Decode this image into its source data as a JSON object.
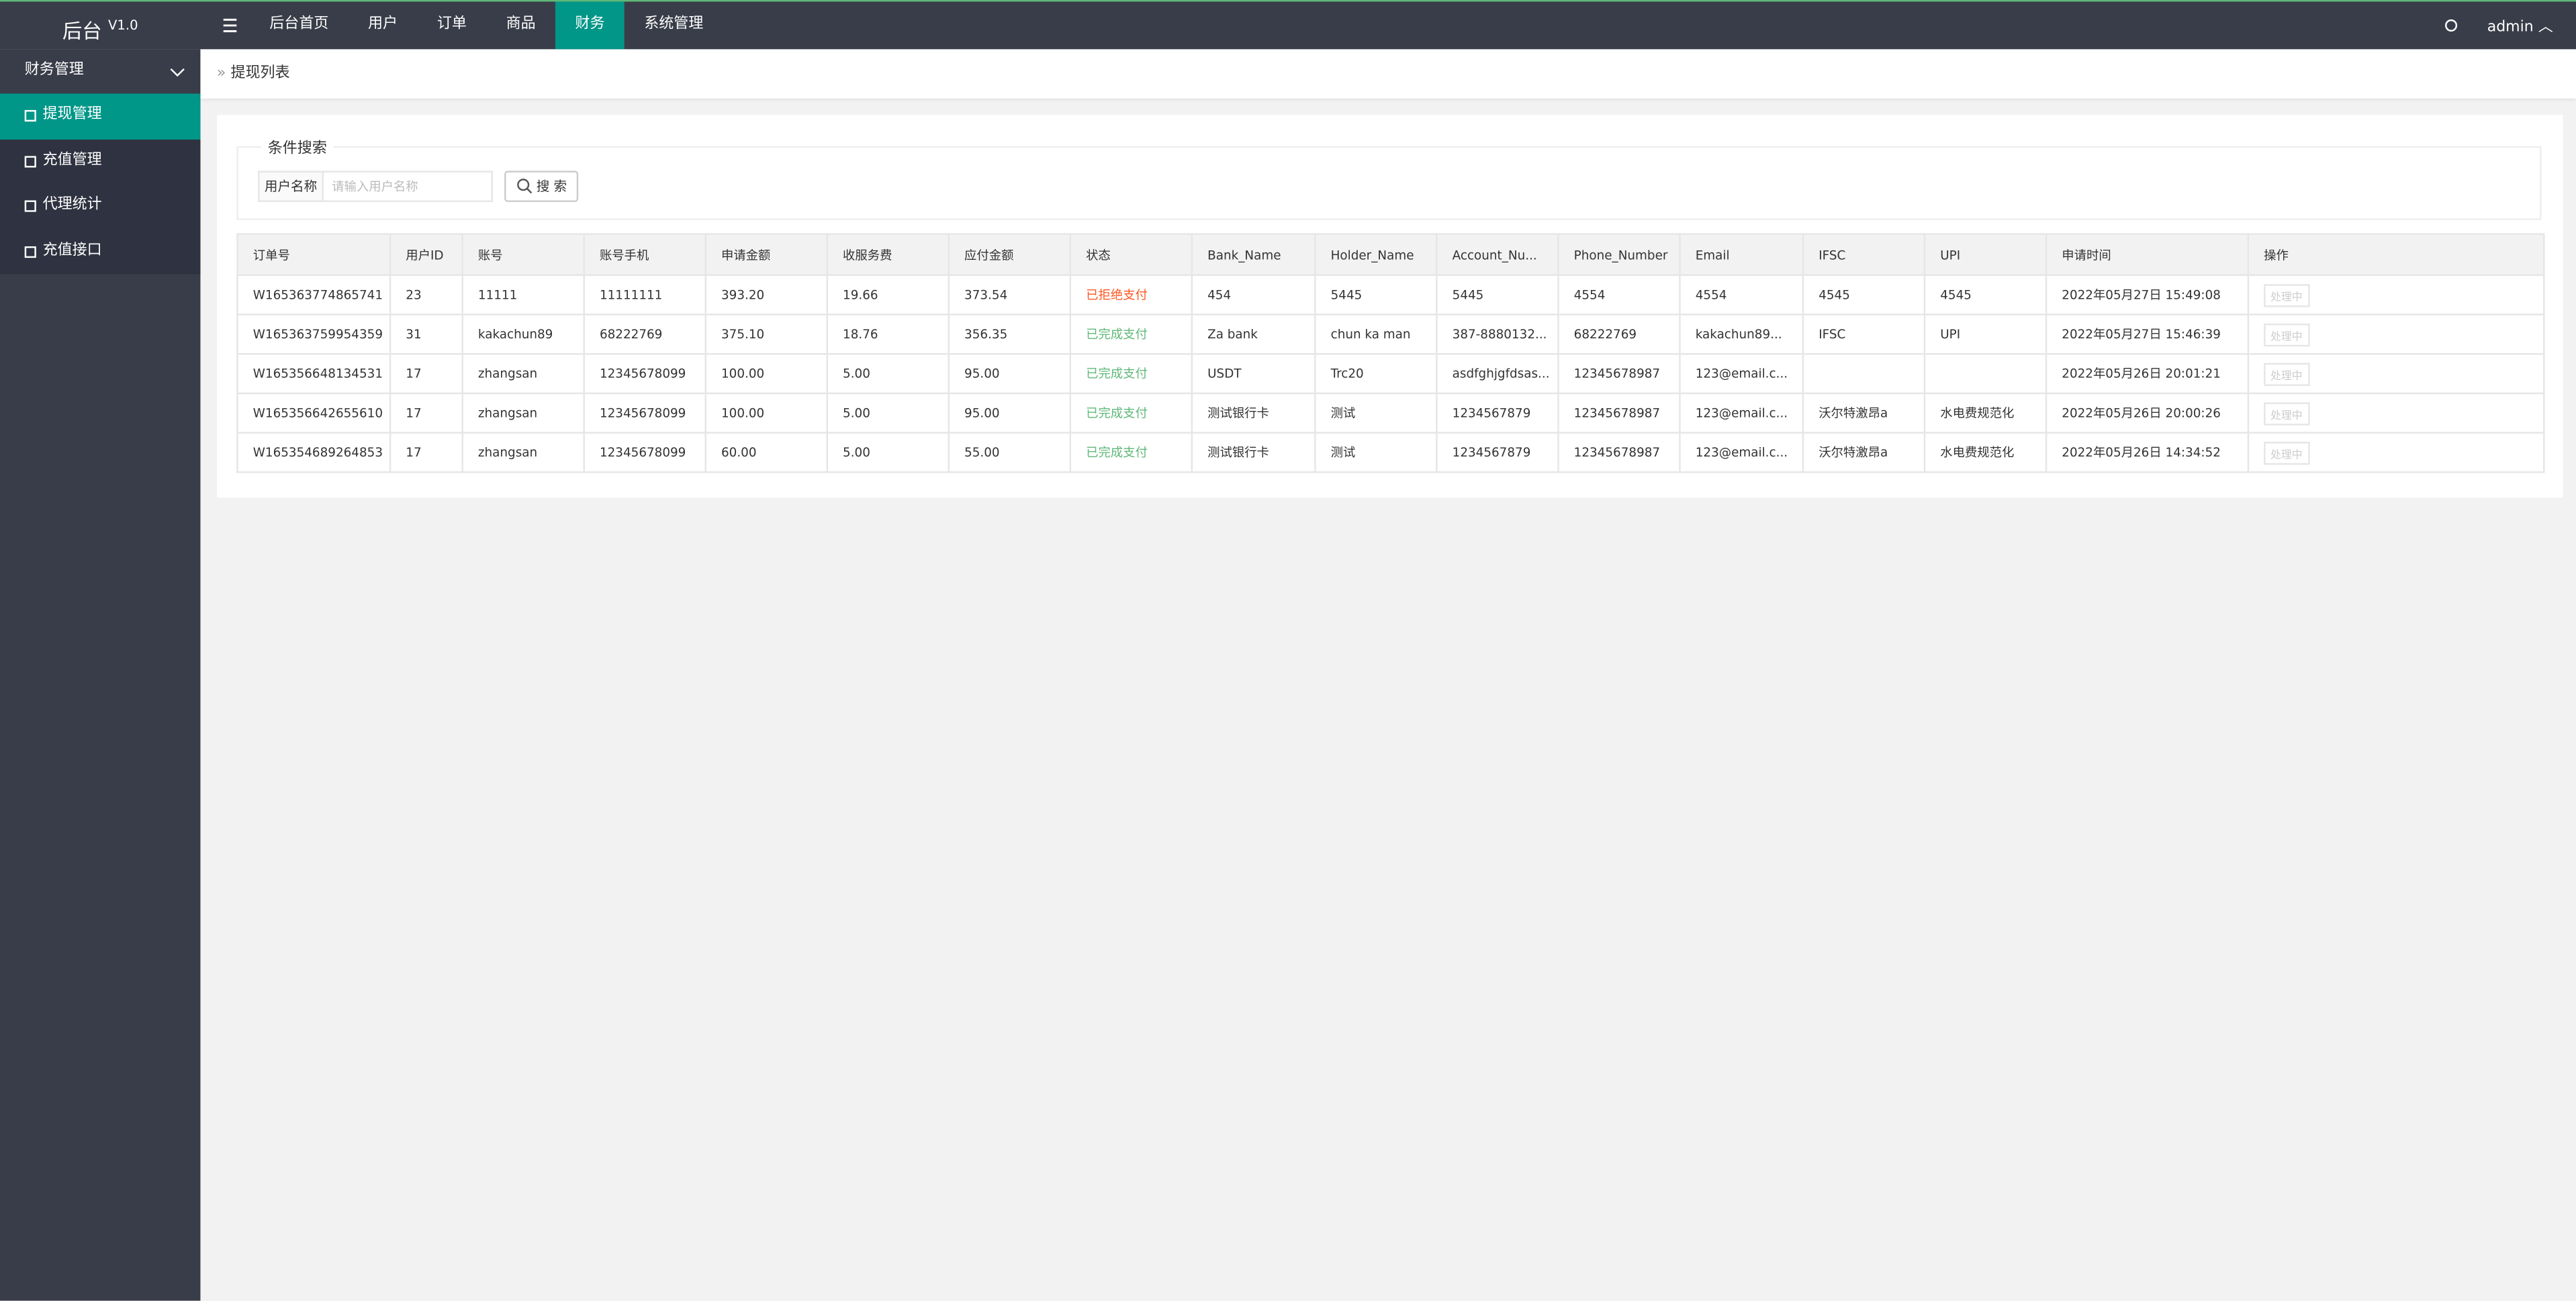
{
  "header": {
    "brand": "后台",
    "version": "V1.0",
    "nav": [
      "后台首页",
      "用户",
      "订单",
      "商品",
      "财务",
      "系统管理"
    ],
    "active_nav": 4,
    "user": "admin"
  },
  "sidebar": {
    "group": "财务管理",
    "items": [
      "提现管理",
      "充值管理",
      "代理统计",
      "充值接口"
    ],
    "active_item": 0
  },
  "breadcrumb": "提现列表",
  "search": {
    "legend": "条件搜索",
    "label": "用户名称",
    "placeholder": "请输入用户名称",
    "button": "搜 索"
  },
  "table": {
    "headers": [
      "订单号",
      "用户ID",
      "账号",
      "账号手机",
      "申请金额",
      "收服务费",
      "应付金额",
      "状态",
      "Bank_Name",
      "Holder_Name",
      "Account_Nu...",
      "Phone_Number",
      "Email",
      "IFSC",
      "UPI",
      "申请时间",
      "操作"
    ],
    "rows": [
      [
        "W165363774865741",
        "23",
        "11111",
        "11111111",
        "393.20",
        "19.66",
        "373.54",
        "已拒绝支付",
        "454",
        "5445",
        "5445",
        "4554",
        "4554",
        "4545",
        "4545",
        "2022年05月27日 15:49:08",
        "处理中"
      ],
      [
        "W165363759954359",
        "31",
        "kakachun89",
        "68222769",
        "375.10",
        "18.76",
        "356.35",
        "已完成支付",
        "Za bank",
        "chun ka man",
        "387-8880132...",
        "68222769",
        "kakachun89...",
        "IFSC",
        "UPI",
        "2022年05月27日 15:46:39",
        "处理中"
      ],
      [
        "W165356648134531",
        "17",
        "zhangsan",
        "12345678099",
        "100.00",
        "5.00",
        "95.00",
        "已完成支付",
        "USDT",
        "Trc20",
        "asdfghjgfdsas...",
        "12345678987",
        "123@email.c...",
        "",
        "",
        "2022年05月26日 20:01:21",
        "处理中"
      ],
      [
        "W165356642655610",
        "17",
        "zhangsan",
        "12345678099",
        "100.00",
        "5.00",
        "95.00",
        "已完成支付",
        "测试银行卡",
        "测试",
        "1234567879",
        "12345678987",
        "123@email.c...",
        "沃尔特激昂a",
        "水电费规范化",
        "2022年05月26日 20:00:26",
        "处理中"
      ],
      [
        "W165354689264853",
        "17",
        "zhangsan",
        "12345678099",
        "60.00",
        "5.00",
        "55.00",
        "已完成支付",
        "测试银行卡",
        "测试",
        "1234567879",
        "12345678987",
        "123@email.c...",
        "沃尔特激昂a",
        "水电费规范化",
        "2022年05月26日 14:34:52",
        "处理中"
      ]
    ],
    "status_colors": [
      "#ff5722",
      "#5fb878",
      "#5fb878",
      "#5fb878",
      "#5fb878"
    ]
  }
}
